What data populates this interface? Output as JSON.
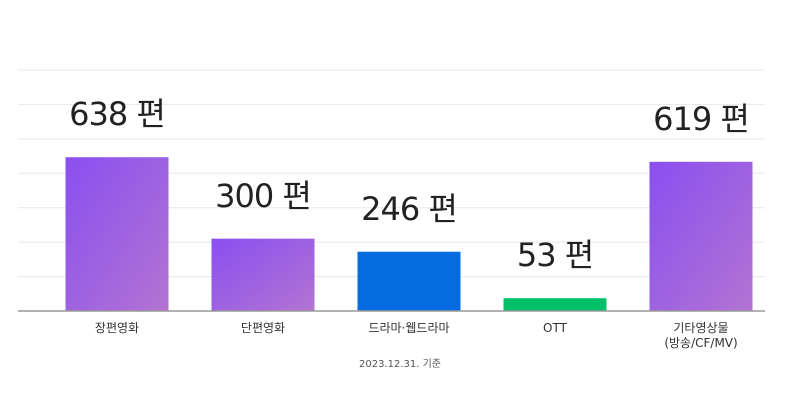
{
  "chart_data": {
    "type": "bar",
    "categories": [
      "장편영화",
      "단편영화",
      "드라마·웹드라마",
      "OTT",
      "기타영상물\n(방송/CF/MV)"
    ],
    "values": [
      638,
      300,
      246,
      53,
      619
    ],
    "value_labels": [
      "638 편",
      "300 편",
      "246 편",
      "53 편",
      "619 편"
    ],
    "colors": [
      "#8a4ff0",
      "#8a4ff0",
      "#046ce0",
      "#00c06a",
      "#8a4ff0"
    ],
    "ylim": [
      0,
      1000
    ],
    "note": "2023.12.31. 기준"
  }
}
